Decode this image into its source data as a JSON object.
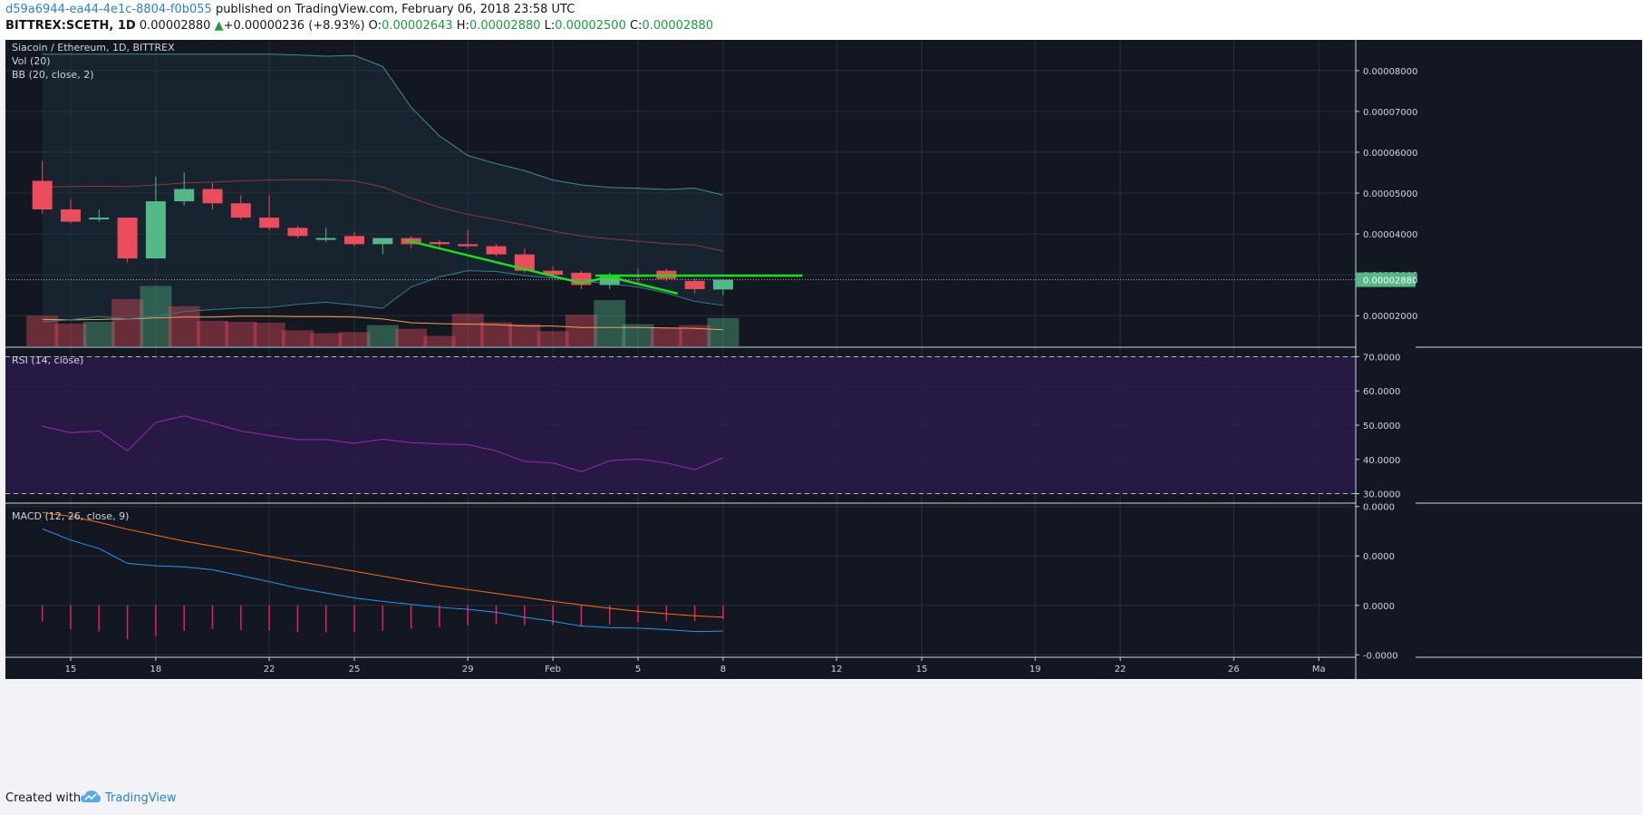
{
  "header": {
    "author": "d59a6944-ea44-4e1c-8804-f0b055",
    "published": " published on TradingView.com, February 06, 2018 23:58 UTC",
    "symbol": "BITTREX:SCETH, 1D",
    "last": "0.00002880",
    "change_arrow": "▲",
    "change": "+0.00000236 (+8.93%)",
    "o_label": "O:",
    "o_value": "0.00002643",
    "h_label": "H:",
    "h_value": "0.00002880",
    "l_label": "L:",
    "l_value": "0.00002500",
    "c_label": "C:",
    "c_value": "0.00002880"
  },
  "footer": {
    "created_with": "Created with",
    "brand": "TradingView",
    "logo_icon": "tradingview-cloud-icon"
  },
  "colors": {
    "background": "#131722",
    "grid": "#2a2e39",
    "axis_text": "#d1d4dc",
    "up": "#53b987",
    "down": "#eb4d5c",
    "bb_upper": "#3d8f8f",
    "bb_basis": "#8b3a3a",
    "bb_lower": "#2f7f8f",
    "vol_ma": "#f7a24a",
    "rsi_line": "#9c27b0",
    "rsi_band": "#2a1a4a",
    "macd_line": "#2196f3",
    "signal_line": "#ff6d00",
    "histogram": "#e91e63",
    "trendline": "#16e116",
    "price_label": "#53b987"
  },
  "chart_data": [
    {
      "type": "candlestick",
      "title": "Siacoin / Ethereum, 1D, BITTREX",
      "indicator_labels": [
        "Vol (20)",
        "BB (20, close, 2)"
      ],
      "x_labels": [
        {
          "day": 1,
          "label": "15"
        },
        {
          "day": 4,
          "label": "18"
        },
        {
          "day": 8,
          "label": "22"
        },
        {
          "day": 11,
          "label": "25"
        },
        {
          "day": 15,
          "label": "29"
        },
        {
          "day": 18,
          "label": "Feb"
        },
        {
          "day": 21,
          "label": "5"
        },
        {
          "day": 24,
          "label": "8"
        },
        {
          "day": 28,
          "label": "12"
        },
        {
          "day": 31,
          "label": "15"
        },
        {
          "day": 35,
          "label": "19"
        },
        {
          "day": 38,
          "label": "22"
        },
        {
          "day": 42,
          "label": "26"
        },
        {
          "day": 45,
          "label": "Ma"
        }
      ],
      "x_range": [
        -1.3,
        46.3
      ],
      "price_axis_ticks": [
        "0.00008000",
        "0.00007000",
        "0.00006000",
        "0.00005000",
        "0.00004000",
        "0.00002000"
      ],
      "price_range": [
        1.25e-05,
        8.75e-05
      ],
      "last_price_label": "0.00002880",
      "hidden_tick_label": "0.00003000",
      "candles": [
        {
          "o": 5.3,
          "h": 5.8,
          "l": 4.5,
          "c": 4.6
        },
        {
          "o": 4.6,
          "h": 4.85,
          "l": 4.25,
          "c": 4.3
        },
        {
          "o": 4.4,
          "h": 4.6,
          "l": 4.3,
          "c": 4.4
        },
        {
          "o": 4.4,
          "h": 4.4,
          "l": 3.3,
          "c": 3.4
        },
        {
          "o": 3.4,
          "h": 5.4,
          "l": 3.4,
          "c": 4.8
        },
        {
          "o": 4.8,
          "h": 5.5,
          "l": 4.7,
          "c": 5.1
        },
        {
          "o": 5.1,
          "h": 5.25,
          "l": 4.6,
          "c": 4.75
        },
        {
          "o": 4.75,
          "h": 4.95,
          "l": 4.35,
          "c": 4.4
        },
        {
          "o": 4.4,
          "h": 4.95,
          "l": 4.1,
          "c": 4.15
        },
        {
          "o": 4.15,
          "h": 4.2,
          "l": 3.9,
          "c": 3.95
        },
        {
          "o": 3.9,
          "h": 4.15,
          "l": 3.8,
          "c": 3.9
        },
        {
          "o": 3.95,
          "h": 4.05,
          "l": 3.7,
          "c": 3.75
        },
        {
          "o": 3.75,
          "h": 3.9,
          "l": 3.5,
          "c": 3.9
        },
        {
          "o": 3.9,
          "h": 3.95,
          "l": 3.65,
          "c": 3.75
        },
        {
          "o": 3.8,
          "h": 3.85,
          "l": 3.65,
          "c": 3.75
        },
        {
          "o": 3.75,
          "h": 4.1,
          "l": 3.65,
          "c": 3.7
        },
        {
          "o": 3.7,
          "h": 3.75,
          "l": 3.45,
          "c": 3.5
        },
        {
          "o": 3.5,
          "h": 3.65,
          "l": 3.05,
          "c": 3.1
        },
        {
          "o": 3.1,
          "h": 3.2,
          "l": 2.95,
          "c": 3.0
        },
        {
          "o": 3.05,
          "h": 3.1,
          "l": 2.65,
          "c": 2.75
        },
        {
          "o": 2.75,
          "h": 3.05,
          "l": 2.65,
          "c": 3.0
        },
        {
          "o": 3.0,
          "h": 3.15,
          "l": 2.8,
          "c": 2.95
        },
        {
          "o": 3.1,
          "h": 3.15,
          "l": 2.85,
          "c": 2.9
        },
        {
          "o": 2.85,
          "h": 2.9,
          "l": 2.55,
          "c": 2.65
        },
        {
          "o": 2.64,
          "h": 2.88,
          "l": 2.5,
          "c": 2.88
        }
      ],
      "candle_scale": "1e-5",
      "bb_upper": [
        8.4,
        8.4,
        8.4,
        8.4,
        8.4,
        8.4,
        8.4,
        8.4,
        8.4,
        8.38,
        8.35,
        8.37,
        8.1,
        7.1,
        6.4,
        5.92,
        5.72,
        5.55,
        5.32,
        5.2,
        5.14,
        5.12,
        5.09,
        5.12,
        4.95
      ],
      "bb_basis": [
        5.15,
        5.16,
        5.17,
        5.16,
        5.2,
        5.25,
        5.27,
        5.3,
        5.32,
        5.33,
        5.33,
        5.3,
        5.15,
        4.88,
        4.65,
        4.48,
        4.35,
        4.22,
        4.07,
        3.95,
        3.88,
        3.82,
        3.76,
        3.73,
        3.58
      ],
      "bb_lower": [
        1.85,
        1.9,
        1.98,
        1.92,
        1.98,
        2.1,
        2.15,
        2.19,
        2.2,
        2.28,
        2.33,
        2.26,
        2.18,
        2.7,
        2.95,
        3.1,
        3.08,
        2.98,
        2.92,
        2.85,
        2.78,
        2.7,
        2.55,
        2.35,
        2.25
      ],
      "trendlines": [
        {
          "from": [
            12.8,
            3.85
          ],
          "to": [
            19.0,
            2.8
          ]
        },
        {
          "from": [
            19.0,
            2.8
          ],
          "to": [
            20.0,
            2.95
          ]
        },
        {
          "from": [
            20.0,
            2.95
          ],
          "to": [
            22.4,
            2.54
          ]
        },
        {
          "from": [
            19.5,
            2.98
          ],
          "to": [
            26.8,
            2.98
          ]
        }
      ]
    },
    {
      "type": "bar",
      "title": "Vol (20)",
      "values": [
        0.65,
        0.48,
        0.52,
        1.0,
        1.28,
        0.85,
        0.54,
        0.52,
        0.5,
        0.34,
        0.28,
        0.3,
        0.45,
        0.37,
        0.22,
        0.69,
        0.51,
        0.47,
        0.32,
        0.67,
        0.98,
        0.47,
        0.39,
        0.45,
        0.6
      ],
      "ma": [
        0.57,
        0.56,
        0.57,
        0.58,
        0.6,
        0.62,
        0.62,
        0.64,
        0.64,
        0.63,
        0.63,
        0.62,
        0.58,
        0.5,
        0.48,
        0.47,
        0.46,
        0.43,
        0.43,
        0.4,
        0.4,
        0.4,
        0.39,
        0.38,
        0.35
      ],
      "up_days": [
        2,
        4,
        12,
        20,
        21,
        24
      ]
    },
    {
      "type": "line",
      "title": "RSI (14, close)",
      "y_ticks": [
        "70.0000",
        "60.0000",
        "50.0000",
        "40.0000",
        "30.0000"
      ],
      "ylim": [
        27.5,
        72.5
      ],
      "band": [
        30,
        70
      ],
      "values": [
        49.7,
        47.8,
        48.3,
        42.5,
        50.8,
        52.7,
        50.6,
        48.3,
        47.0,
        45.8,
        45.8,
        44.7,
        45.9,
        44.9,
        44.5,
        44.3,
        42.5,
        39.4,
        39.0,
        36.4,
        39.6,
        40.1,
        39.0,
        37.0,
        40.5
      ]
    },
    {
      "type": "line",
      "title": "MACD (12, 26, close, 9)",
      "y_ticks": [
        "0.0000",
        "0.0000",
        "0.0000",
        "-0.0000"
      ],
      "y_tick_values": [
        3,
        2,
        1,
        0
      ],
      "ylim": [
        -0.05,
        3.05
      ],
      "series": [
        {
          "key": "macd",
          "values": [
            2.55,
            2.32,
            2.15,
            1.85,
            1.8,
            1.78,
            1.72,
            1.6,
            1.48,
            1.35,
            1.25,
            1.15,
            1.08,
            1.02,
            0.96,
            0.92,
            0.86,
            0.76,
            0.68,
            0.58,
            0.55,
            0.54,
            0.51,
            0.47,
            0.48
          ]
        },
        {
          "key": "signal",
          "values": [
            2.88,
            2.8,
            2.68,
            2.54,
            2.42,
            2.3,
            2.2,
            2.1,
            1.99,
            1.89,
            1.79,
            1.69,
            1.59,
            1.49,
            1.4,
            1.32,
            1.24,
            1.16,
            1.08,
            1.01,
            0.94,
            0.88,
            0.83,
            0.79,
            0.76
          ]
        }
      ],
      "histogram_zero": 1,
      "histogram": [
        -0.33,
        -0.48,
        -0.53,
        -0.69,
        -0.62,
        -0.52,
        -0.48,
        -0.5,
        -0.51,
        -0.54,
        -0.54,
        -0.54,
        -0.51,
        -0.47,
        -0.44,
        -0.4,
        -0.38,
        -0.4,
        -0.4,
        -0.43,
        -0.39,
        -0.34,
        -0.32,
        -0.32,
        -0.28
      ]
    }
  ]
}
